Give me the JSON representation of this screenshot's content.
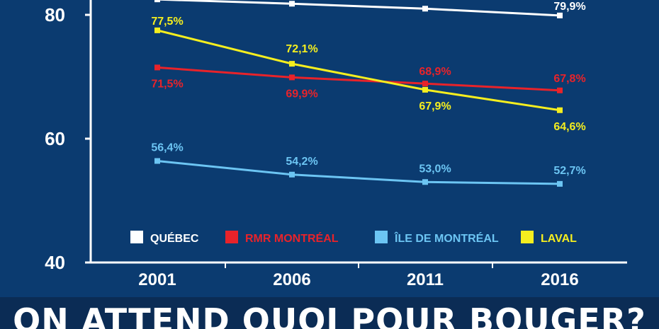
{
  "chart_data": {
    "type": "line",
    "x": [
      "2001",
      "2006",
      "2011",
      "2016"
    ],
    "y_ticks": [
      40,
      60,
      80
    ],
    "ylim": [
      40,
      82
    ],
    "grid": false,
    "legend_placement": "bottom",
    "series": [
      {
        "name": "QUÉBEC",
        "color": "#ffffff",
        "values": [
          82.5,
          81.8,
          81.0,
          79.9
        ],
        "labels": [
          "",
          "",
          "",
          "79,9%"
        ]
      },
      {
        "name": "RMR MONTRÉAL",
        "color": "#e8232a",
        "values": [
          71.5,
          69.9,
          68.9,
          67.8
        ],
        "labels": [
          "71,5%",
          "69,9%",
          "68,9%",
          "67,8%"
        ]
      },
      {
        "name": "ÎLE DE MONTRÉAL",
        "color": "#6cc5f3",
        "values": [
          56.4,
          54.2,
          53.0,
          52.7
        ],
        "labels": [
          "56,4%",
          "54,2%",
          "53,0%",
          "52,7%"
        ]
      },
      {
        "name": "LAVAL",
        "color": "#f5ee1f",
        "values": [
          77.5,
          72.1,
          67.9,
          64.6
        ],
        "labels": [
          "77,5%",
          "72,1%",
          "67,9%",
          "64,6%"
        ]
      }
    ]
  },
  "banner": {
    "text": "ON ATTEND QUOI POUR BOUGER?"
  },
  "colors": {
    "background": "#0b3b70",
    "banner": "#0b2c55",
    "axis": "#ffffff"
  }
}
